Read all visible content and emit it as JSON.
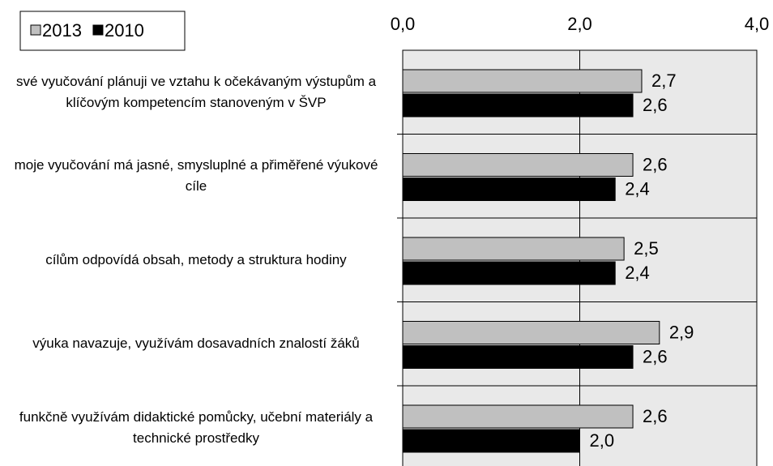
{
  "chart_data": {
    "type": "hbar",
    "categories": [
      "své vyučování plánuji ve vztahu k očekávaným výstupům a klíčovým kompetencím stanoveným v ŠVP",
      "moje vyučování má jasné, smysluplné a přiměřené výukové cíle",
      "cílům odpovídá obsah, metody a struktura hodiny",
      "výuka navazuje, využívám dosavadních znalostí žáků",
      "funkčně využívám didaktické pomůcky, učební materiály a technické prostředky"
    ],
    "series": [
      {
        "name": "2013",
        "color": "#c0c0c0",
        "values": [
          2.7,
          2.6,
          2.5,
          2.9,
          2.6
        ],
        "value_labels": [
          "2,7",
          "2,6",
          "2,5",
          "2,9",
          "2,6"
        ]
      },
      {
        "name": "2010",
        "color": "#000000",
        "values": [
          2.6,
          2.4,
          2.4,
          2.6,
          2.0
        ],
        "value_labels": [
          "2,6",
          "2,4",
          "2,4",
          "2,6",
          "2,0"
        ]
      }
    ],
    "xlim": [
      0,
      4
    ],
    "xticks": [
      {
        "value": 0,
        "label": "0,0"
      },
      {
        "value": 2,
        "label": "2,0"
      },
      {
        "value": 4,
        "label": "4,0"
      }
    ],
    "grid": true,
    "legend": "top-left"
  }
}
